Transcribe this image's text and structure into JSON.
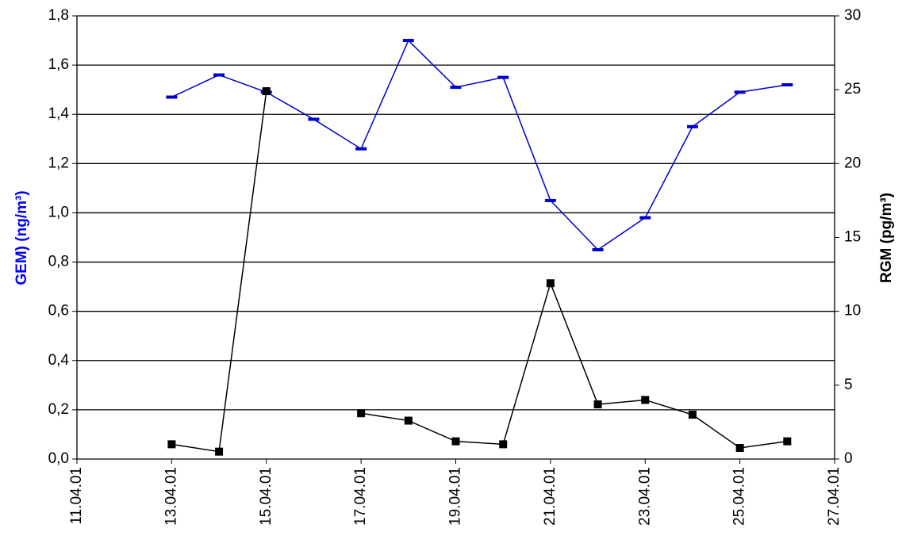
{
  "chart_data": {
    "type": "line",
    "x": [
      "13.04.01",
      "14.04.01",
      "15.04.01",
      "16.04.01",
      "17.04.01",
      "18.04.01",
      "19.04.01",
      "20.04.01",
      "21.04.01",
      "22.04.01",
      "23.04.01",
      "24.04.01",
      "25.04.01",
      "26.04.01"
    ],
    "xlim": [
      "11.04.01",
      "27.04.01"
    ],
    "xticks": [
      "11.04.01",
      "13.04.01",
      "15.04.01",
      "17.04.01",
      "19.04.01",
      "21.04.01",
      "23.04.01",
      "25.04.01",
      "27.04.01"
    ],
    "ylabel": "GEM) (ng/m³)",
    "y2label": "RGM (pg/m³)",
    "ylim": [
      0,
      1.8
    ],
    "yticks": [
      {
        "value": 0,
        "label": "0,0"
      },
      {
        "value": 0.2,
        "label": "0,2"
      },
      {
        "value": 0.4,
        "label": "0,4"
      },
      {
        "value": 0.6,
        "label": "0,6"
      },
      {
        "value": 0.8,
        "label": "0,8"
      },
      {
        "value": 1,
        "label": "1,0"
      },
      {
        "value": 1.2,
        "label": "1,2"
      },
      {
        "value": 1.4,
        "label": "1,4"
      },
      {
        "value": 1.6,
        "label": "1,6"
      },
      {
        "value": 1.8,
        "label": "1,8"
      }
    ],
    "y2lim": [
      0,
      30
    ],
    "y2ticks": [
      0,
      5,
      10,
      15,
      20,
      25,
      30
    ],
    "grid": true,
    "ylabel_color": "#0000ff",
    "series": [
      {
        "color": "#0000cc",
        "marker": "dash",
        "values": [
          1.47,
          1.56,
          1.49,
          1.38,
          1.26,
          1.7,
          1.51,
          1.55,
          1.05,
          0.85,
          0.98,
          1.35,
          1.49,
          1.52
        ]
      },
      {
        "color": "#000000",
        "marker": "square",
        "axis": "y2",
        "values": [
          1.0,
          0.5,
          24.9,
          null,
          3.1,
          2.6,
          1.2,
          1.0,
          11.9,
          3.7,
          4.0,
          3.0,
          0.75,
          1.2
        ]
      }
    ]
  }
}
